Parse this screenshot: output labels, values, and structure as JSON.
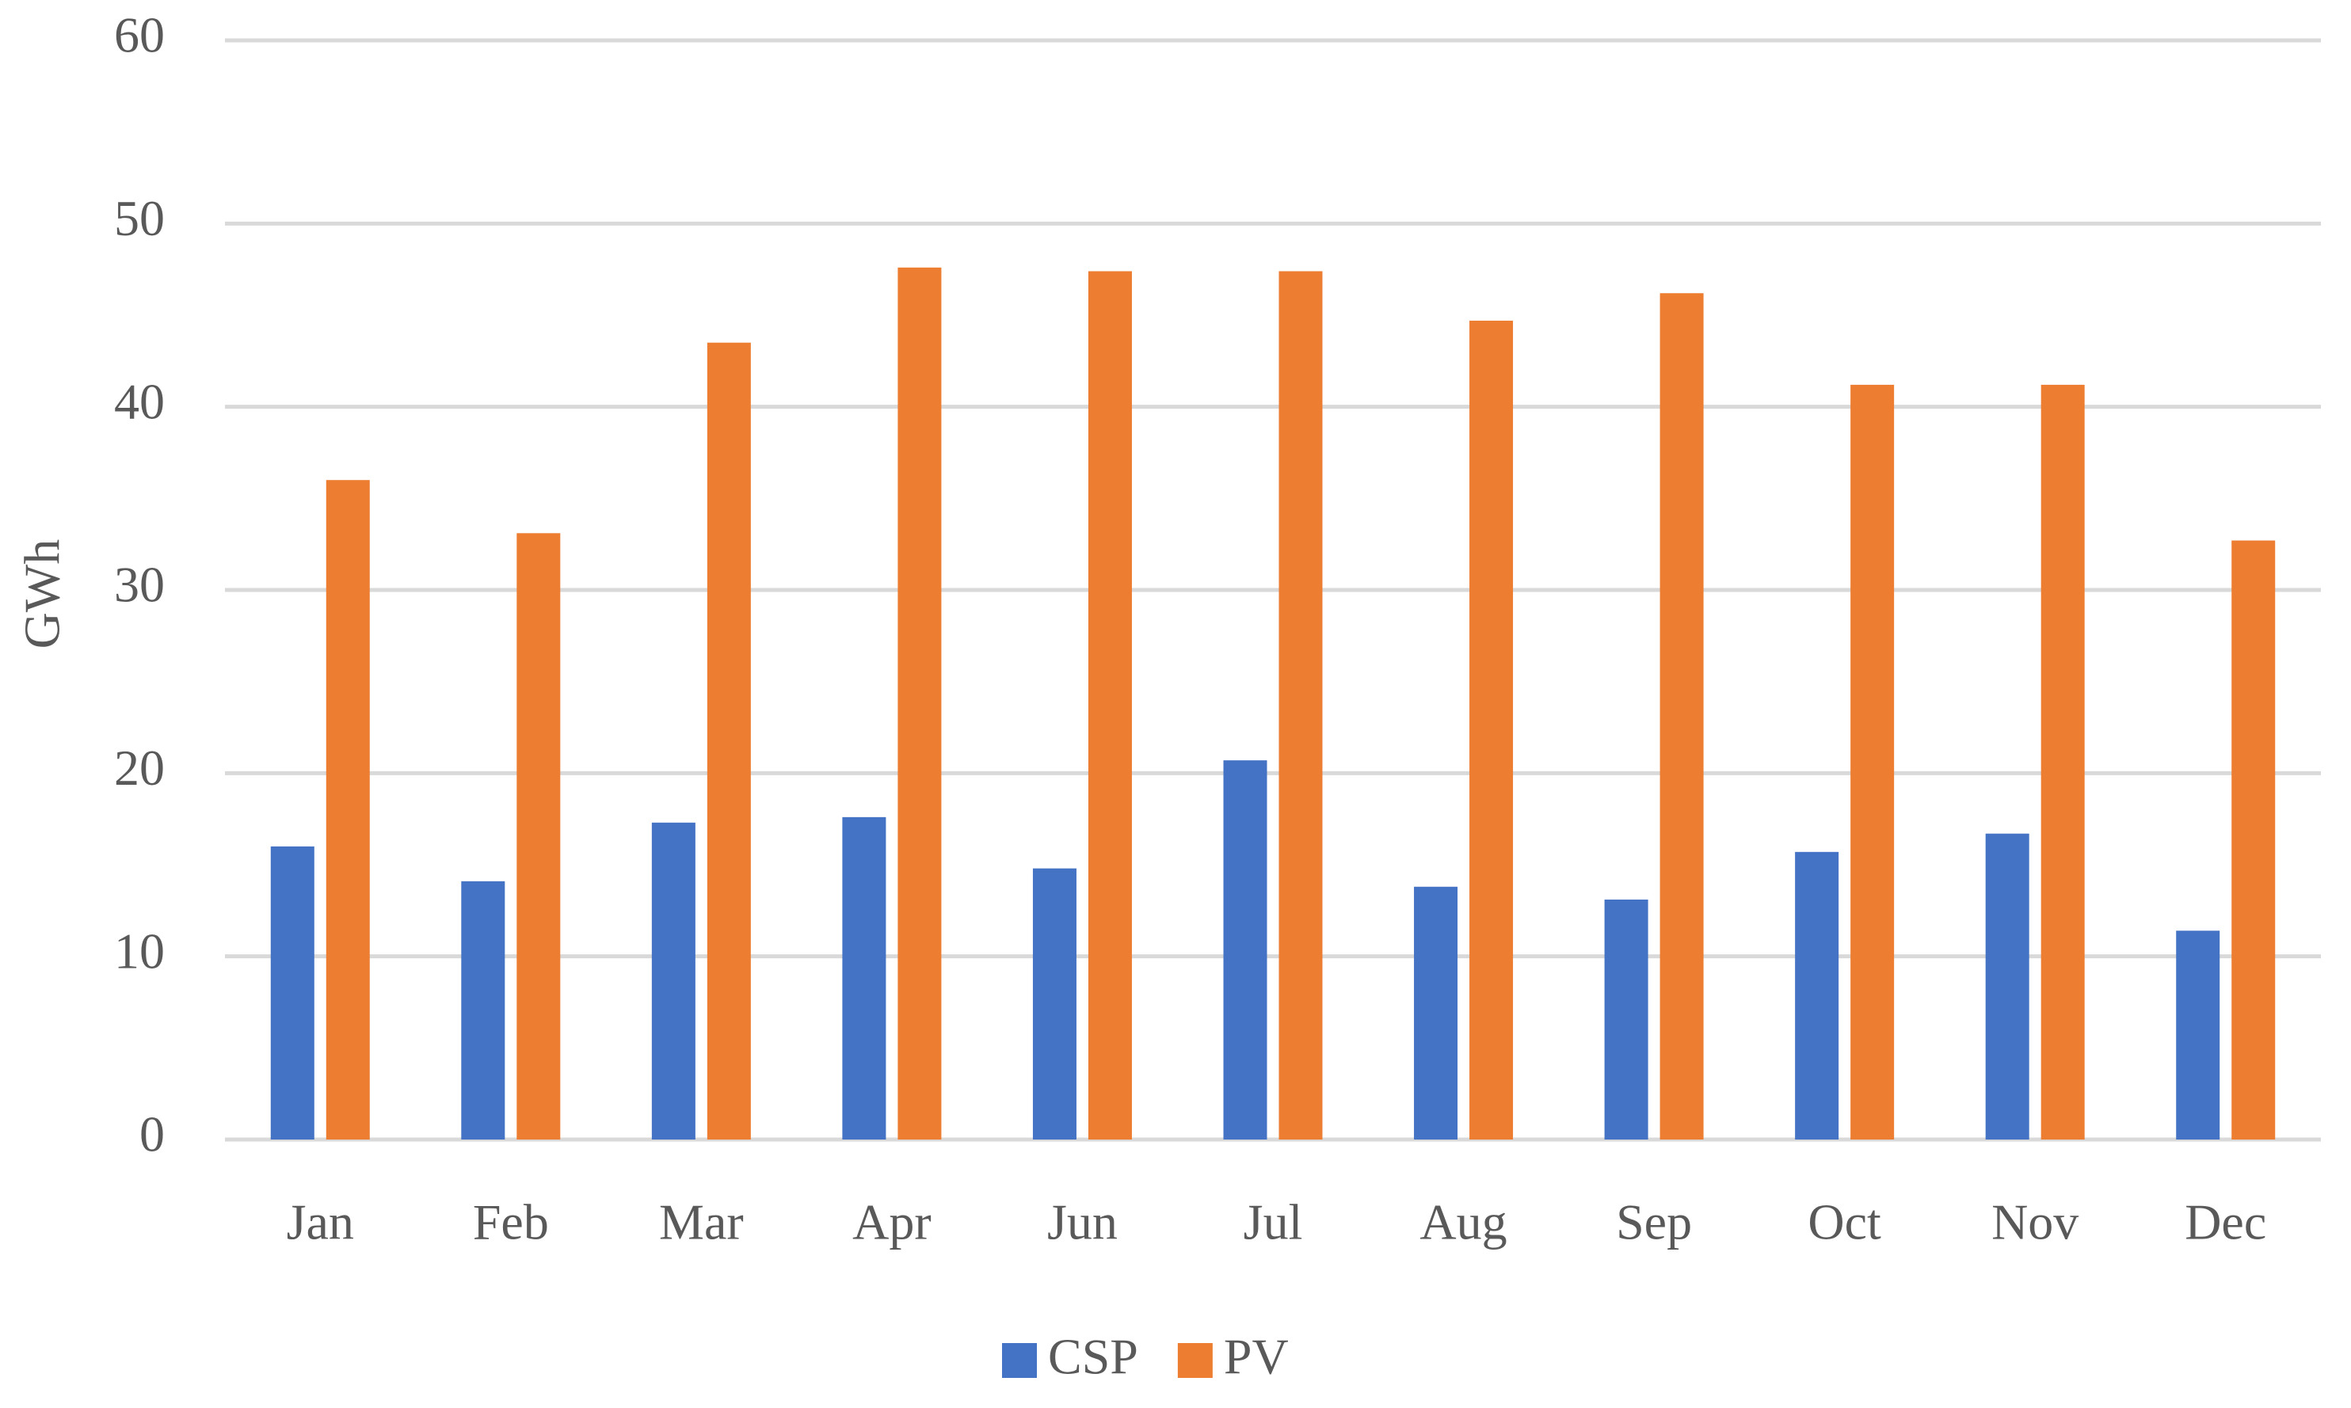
{
  "chart_data": {
    "type": "bar",
    "y_label": "GWh",
    "categories": [
      "Jan",
      "Feb",
      "Mar",
      "Apr",
      "Jun",
      "Jul",
      "Aug",
      "Sep",
      "Oct",
      "Nov",
      "Dec"
    ],
    "series": [
      {
        "name": "CSP",
        "color": "#4472c4",
        "values": [
          16.0,
          14.1,
          17.3,
          17.6,
          14.8,
          20.7,
          13.8,
          13.1,
          15.7,
          16.7,
          11.4
        ]
      },
      {
        "name": "PV",
        "color": "#ed7d31",
        "values": [
          36.0,
          33.1,
          43.5,
          47.6,
          47.4,
          47.4,
          44.7,
          46.2,
          41.2,
          41.2,
          32.7
        ]
      }
    ],
    "ylim": [
      0,
      60
    ],
    "yticks": [
      0,
      10,
      20,
      30,
      40,
      50,
      60
    ],
    "grid": true,
    "legend": "bottom"
  }
}
